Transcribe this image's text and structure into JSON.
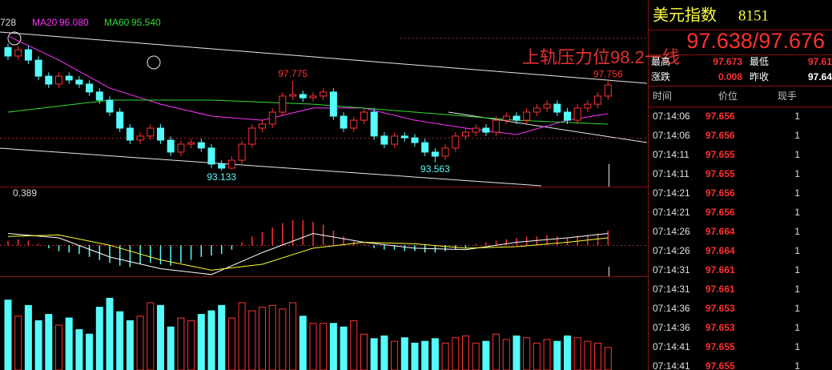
{
  "price_chart": {
    "corner_label": "728",
    "ylim": [
      92.305,
      101.961
    ],
    "up_color": "#ff3232",
    "down_color": "#54fcfc",
    "open": [
      99.5,
      99.06,
      99.39,
      98.85,
      98.02,
      97.61,
      98.02,
      97.82,
      97.61,
      97.2,
      96.78,
      96.16,
      95.33,
      94.71,
      94.92,
      95.33,
      94.71,
      94.09,
      94.5,
      94.58,
      94.3,
      93.47,
      93.26,
      93.67,
      94.5,
      95.33,
      95.54,
      96.16,
      96.99,
      97.07,
      96.9,
      96.99,
      97.2,
      95.95,
      95.33,
      95.74,
      96.16,
      94.92,
      94.5,
      94.92,
      94.83,
      94.58,
      94.09,
      93.88,
      94.3,
      94.92,
      95.12,
      95.33,
      95.12,
      95.74,
      95.95,
      95.74,
      96.16,
      96.37,
      96.57,
      96.16,
      95.74,
      96.37,
      96.57,
      96.99
    ],
    "high": [
      99.7,
      99.59,
      99.59,
      99.05,
      98.22,
      98.22,
      98.22,
      98.02,
      97.81,
      97.4,
      96.98,
      96.36,
      95.53,
      95.12,
      95.53,
      95.53,
      94.91,
      94.7,
      94.78,
      94.78,
      94.5,
      93.67,
      93.87,
      94.7,
      95.53,
      95.74,
      96.36,
      97.19,
      97.775,
      97.27,
      97.19,
      97.4,
      97.4,
      96.15,
      95.94,
      96.36,
      96.36,
      95.12,
      95.12,
      95.12,
      95.03,
      94.78,
      94.29,
      94.5,
      95.12,
      95.32,
      95.53,
      95.53,
      95.94,
      96.15,
      96.15,
      96.36,
      96.57,
      96.77,
      96.77,
      96.36,
      96.57,
      96.77,
      97.19,
      97.756
    ],
    "low": [
      98.86,
      98.86,
      98.65,
      97.82,
      97.41,
      97.41,
      97.62,
      97.41,
      97.0,
      96.58,
      95.96,
      95.13,
      94.51,
      94.51,
      94.72,
      94.51,
      93.89,
      93.89,
      94.3,
      94.1,
      93.27,
      93.133,
      93.2,
      93.47,
      94.3,
      95.13,
      95.34,
      95.96,
      96.79,
      96.7,
      96.7,
      96.79,
      95.75,
      95.13,
      95.13,
      95.54,
      94.72,
      94.3,
      94.3,
      94.63,
      94.38,
      93.89,
      93.563,
      93.68,
      94.1,
      94.72,
      94.92,
      94.92,
      94.92,
      95.54,
      95.54,
      95.54,
      95.96,
      96.17,
      95.96,
      95.54,
      95.54,
      96.17,
      96.37,
      96.79
    ],
    "close": [
      99.06,
      99.39,
      98.85,
      98.02,
      97.61,
      98.02,
      97.82,
      97.61,
      97.2,
      96.78,
      96.16,
      95.33,
      94.71,
      94.92,
      95.33,
      94.71,
      94.09,
      94.5,
      94.58,
      94.3,
      93.47,
      93.26,
      93.67,
      94.5,
      95.33,
      95.54,
      96.16,
      96.99,
      97.07,
      96.9,
      96.99,
      97.2,
      95.95,
      95.33,
      95.74,
      96.16,
      94.92,
      94.5,
      94.92,
      94.83,
      94.58,
      94.09,
      93.88,
      94.3,
      94.92,
      95.12,
      95.33,
      95.12,
      95.74,
      95.95,
      95.74,
      96.16,
      96.37,
      96.57,
      96.16,
      95.74,
      96.37,
      96.57,
      96.99,
      97.57
    ],
    "ma": [
      {
        "name": "MA20",
        "value_label": "96.080",
        "color": "#ff33ff",
        "x": [
          0,
          5,
          10,
          15,
          20,
          25,
          30,
          35,
          40,
          45,
          50,
          55,
          59
        ],
        "values": [
          100.1,
          98.85,
          97.4,
          96.57,
          95.95,
          95.74,
          96.37,
          96.37,
          95.74,
          95.33,
          95.0,
          95.74,
          96.08
        ]
      },
      {
        "name": "MA60",
        "value_label": "95.540",
        "color": "#33dd33",
        "x": [
          0,
          10,
          20,
          30,
          40,
          50,
          59
        ],
        "values": [
          96.16,
          96.78,
          96.78,
          96.57,
          96.16,
          95.74,
          95.54
        ]
      }
    ],
    "annotation": "上轨压力位98.2一线"
  },
  "macd_chart": {
    "ylim": [
      -0.212,
      0.389
    ],
    "histogram": [
      0.03,
      0.04,
      0.03,
      0.01,
      -0.02,
      -0.04,
      -0.05,
      -0.06,
      -0.08,
      -0.1,
      -0.12,
      -0.14,
      -0.15,
      -0.13,
      -0.12,
      -0.13,
      -0.14,
      -0.12,
      -0.1,
      -0.08,
      -0.07,
      -0.06,
      -0.03,
      0.02,
      0.06,
      0.09,
      0.12,
      0.15,
      0.17,
      0.17,
      0.16,
      0.14,
      0.1,
      0.06,
      0.03,
      0.01,
      -0.02,
      -0.03,
      -0.03,
      -0.04,
      -0.04,
      -0.05,
      -0.05,
      -0.04,
      -0.03,
      -0.02,
      0.01,
      0.02,
      0.03,
      0.04,
      0.05,
      0.06,
      0.06,
      0.07,
      0.06,
      0.05,
      0.06,
      0.07,
      0.08,
      0.1
    ],
    "lines": [
      {
        "color": "#ffffff",
        "x": [
          0,
          5,
          10,
          15,
          20,
          25,
          30,
          35,
          40,
          45,
          50,
          55,
          59
        ],
        "values": [
          0.08,
          0.05,
          -0.08,
          -0.16,
          -0.2,
          -0.05,
          0.08,
          0.02,
          -0.02,
          -0.03,
          0.02,
          0.05,
          0.08
        ]
      },
      {
        "color": "#ffff33",
        "x": [
          0,
          5,
          10,
          15,
          20,
          25,
          30,
          35,
          40,
          45,
          50,
          55,
          59
        ],
        "values": [
          0.06,
          0.07,
          0.0,
          -0.1,
          -0.17,
          -0.13,
          -0.02,
          0.02,
          0.01,
          -0.02,
          -0.01,
          0.02,
          0.05
        ]
      }
    ]
  },
  "volume_chart": {
    "ylim": [
      0,
      100
    ],
    "values": [
      78,
      60,
      72,
      55,
      62,
      50,
      58,
      45,
      40,
      70,
      80,
      65,
      55,
      60,
      75,
      72,
      48,
      58,
      55,
      62,
      66,
      72,
      58,
      75,
      66,
      70,
      72,
      68,
      75,
      60,
      52,
      52,
      52,
      48,
      55,
      40,
      35,
      38,
      32,
      36,
      30,
      32,
      35,
      30,
      36,
      38,
      30,
      32,
      40,
      34,
      38,
      36,
      30,
      34,
      32,
      38,
      36,
      32,
      30,
      25
    ]
  },
  "quote": {
    "title": "美元指数",
    "code": "8151",
    "price": "97.638/97.676",
    "stats": [
      [
        "最高",
        "97.673",
        "最低",
        "97.61"
      ],
      [
        "涨跌",
        "0.008",
        "昨收",
        "97.64"
      ]
    ],
    "trades_header": [
      "时间",
      "价位",
      "现手"
    ],
    "trades": [
      [
        "07:14:06",
        97.656,
        1
      ],
      [
        "07:14:06",
        97.656,
        1
      ],
      [
        "07:14:11",
        97.655,
        1
      ],
      [
        "07:14:11",
        97.655,
        1
      ],
      [
        "07:14:21",
        97.656,
        1
      ],
      [
        "07:14:21",
        97.656,
        1
      ],
      [
        "07:14:26",
        97.664,
        1
      ],
      [
        "07:14:26",
        97.664,
        1
      ],
      [
        "07:14:31",
        97.661,
        1
      ],
      [
        "07:14:31",
        97.661,
        1
      ],
      [
        "07:14:36",
        97.653,
        1
      ],
      [
        "07:14:36",
        97.653,
        1
      ],
      [
        "07:14:41",
        97.655,
        1
      ],
      [
        "07:14:41",
        97.655,
        1
      ]
    ]
  }
}
